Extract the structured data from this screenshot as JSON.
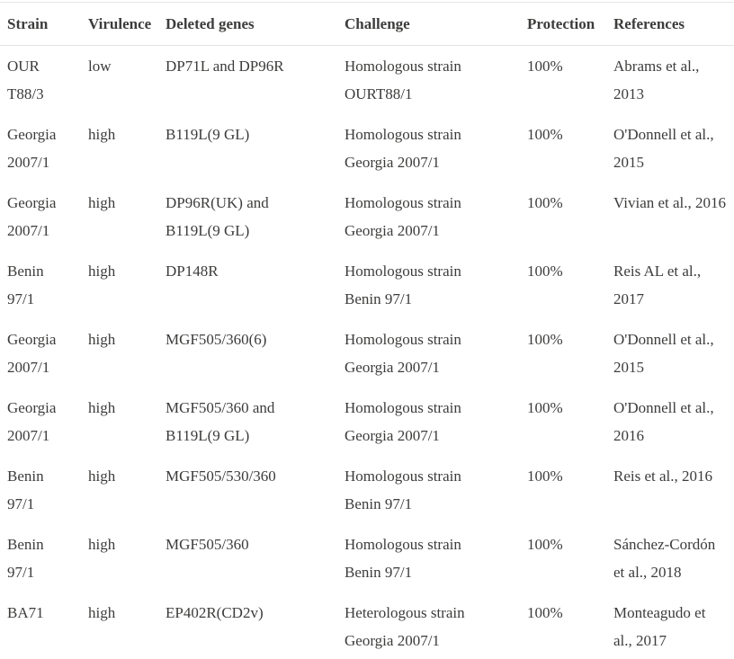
{
  "colors": {
    "text": "#3c3c3b",
    "rule": "#e5e5e5",
    "background": "#ffffff"
  },
  "table": {
    "columns": [
      "Strain",
      "Virulence",
      "Deleted genes",
      "Challenge",
      "Protection",
      "References"
    ],
    "rows": [
      {
        "strain": "OUR\nT88/3",
        "virulence": "low",
        "deleted_genes": "DP71L and DP96R",
        "challenge": "Homologous strain\nOURT88/1",
        "protection": "100%",
        "references": "Abrams et al.,\n2013"
      },
      {
        "strain": "Georgia\n2007/1",
        "virulence": "high",
        "deleted_genes": "B119L(9 GL)",
        "challenge": "Homologous strain\nGeorgia 2007/1",
        "protection": "100%",
        "references": "O'Donnell et al.,\n2015"
      },
      {
        "strain": "Georgia\n2007/1",
        "virulence": "high",
        "deleted_genes": "DP96R(UK) and\nB119L(9 GL)",
        "challenge": "Homologous strain\nGeorgia 2007/1",
        "protection": "100%",
        "references": "Vivian et al., 2016"
      },
      {
        "strain": "Benin\n97/1",
        "virulence": "high",
        "deleted_genes": "DP148R",
        "challenge": "Homologous strain\nBenin 97/1",
        "protection": "100%",
        "references": "Reis AL et al.,\n2017"
      },
      {
        "strain": "Georgia\n2007/1",
        "virulence": "high",
        "deleted_genes": "MGF505/360(6)",
        "challenge": "Homologous strain\nGeorgia 2007/1",
        "protection": "100%",
        "references": "O'Donnell et al.,\n2015"
      },
      {
        "strain": "Georgia\n2007/1",
        "virulence": "high",
        "deleted_genes": "MGF505/360 and\nB119L(9 GL)",
        "challenge": "Homologous strain\nGeorgia 2007/1",
        "protection": "100%",
        "references": "O'Donnell et al.,\n2016"
      },
      {
        "strain": "Benin\n97/1",
        "virulence": "high",
        "deleted_genes": "MGF505/530/360",
        "challenge": "Homologous strain\nBenin 97/1",
        "protection": "100%",
        "references": "Reis et al., 2016"
      },
      {
        "strain": "Benin\n97/1",
        "virulence": "high",
        "deleted_genes": "MGF505/360",
        "challenge": "Homologous strain\nBenin 97/1",
        "protection": "100%",
        "references": "Sánchez-Cordón\net al., 2018"
      },
      {
        "strain": "BA71",
        "virulence": "high",
        "deleted_genes": "EP402R(CD2v)",
        "challenge": "Heterologous strain\nGeorgia 2007/1",
        "protection": "100%",
        "references": "Monteagudo et\nal., 2017"
      }
    ]
  }
}
